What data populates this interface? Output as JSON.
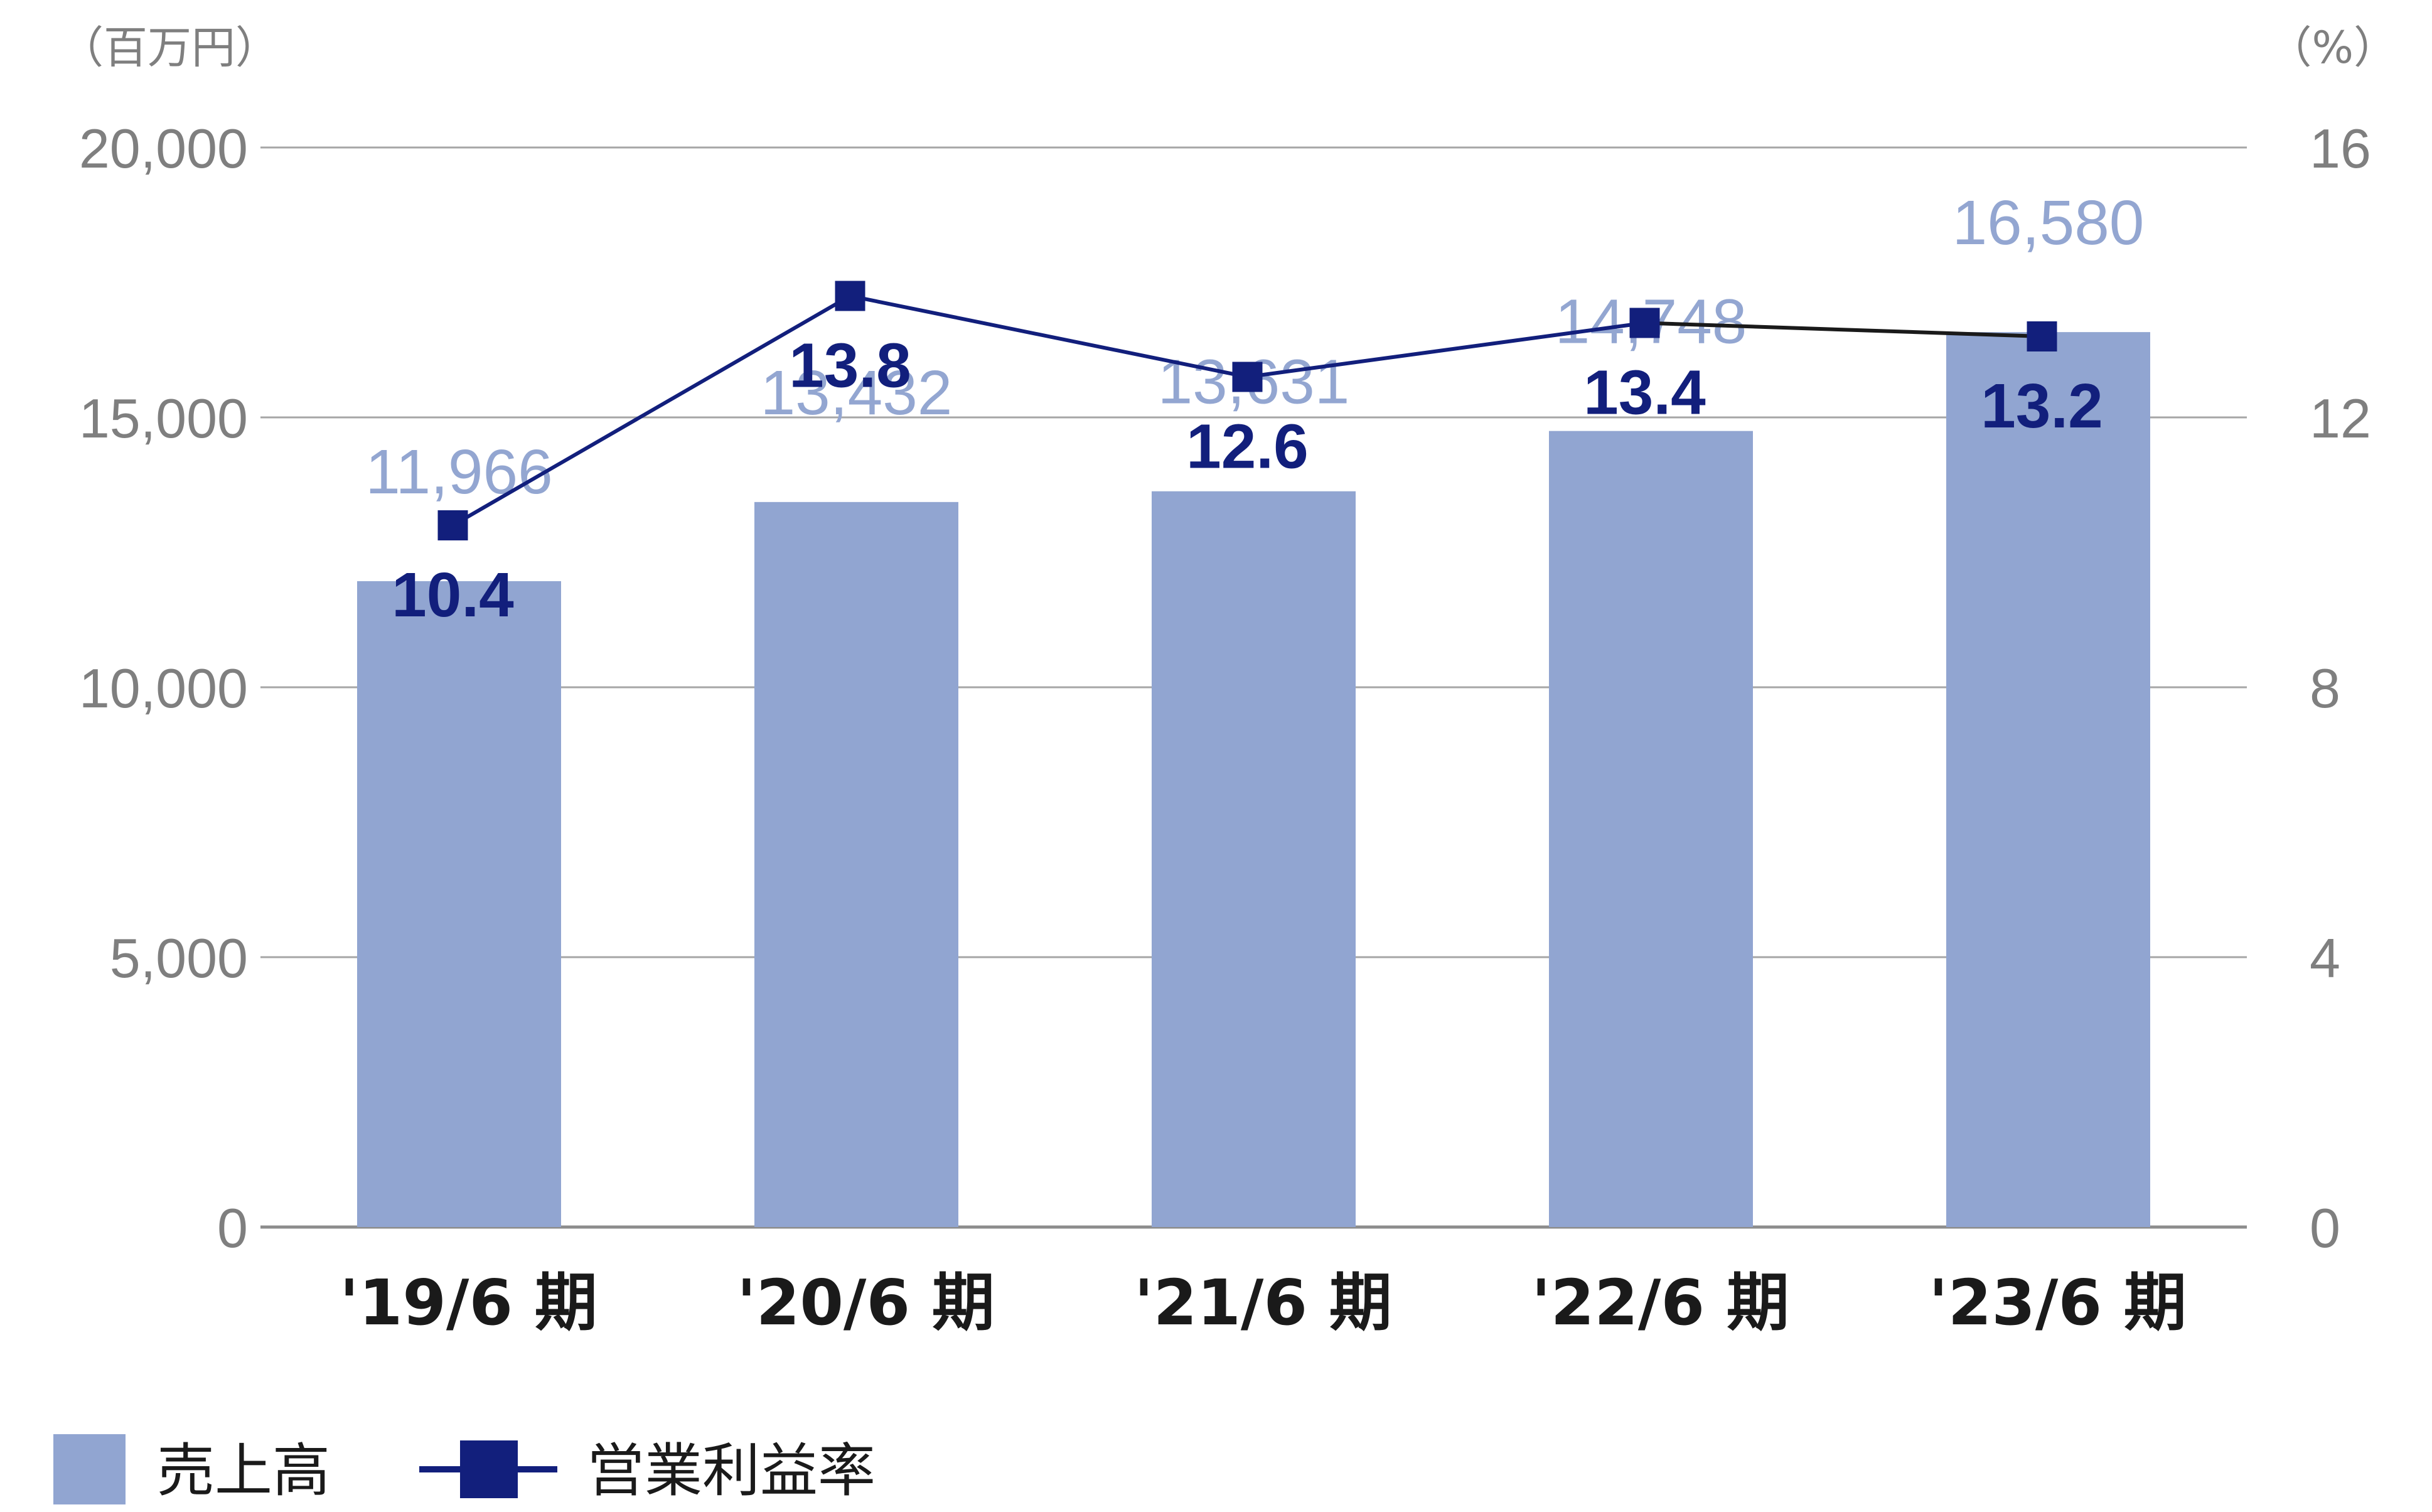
{
  "chart_data": {
    "type": "bar",
    "categories": [
      "'19/6 期",
      "'20/6 期",
      "'21/6 期",
      "'22/6 期",
      "'23/6 期"
    ],
    "series": [
      {
        "name": "売上高",
        "type": "bar",
        "axis": "left",
        "color": "#91a5d1",
        "values": [
          11966,
          13432,
          13631,
          14748,
          16580
        ],
        "labels": [
          "11,966",
          "13,432",
          "13,631",
          "14,748",
          "16,580"
        ]
      },
      {
        "name": "営業利益率",
        "type": "line",
        "axis": "right",
        "color": "#121f7c",
        "values": [
          10.4,
          13.8,
          12.6,
          13.4,
          13.2
        ],
        "labels": [
          "10.4",
          "13.8",
          "12.6",
          "13.4",
          "13.2"
        ]
      }
    ],
    "y_left": {
      "unit": "（百万円）",
      "min": 0,
      "max": 20000,
      "ticks": [
        0,
        5000,
        10000,
        15000,
        20000
      ],
      "tick_labels": [
        "0",
        "5,000",
        "10,000",
        "15,000",
        "20,000"
      ]
    },
    "y_right": {
      "unit": "（%）",
      "min": 0,
      "max": 16,
      "ticks": [
        0,
        4,
        8,
        12,
        16
      ],
      "tick_labels": [
        "0",
        "4",
        "8",
        "12",
        "16"
      ]
    },
    "grid": true,
    "legend_position": "bottom-left"
  }
}
